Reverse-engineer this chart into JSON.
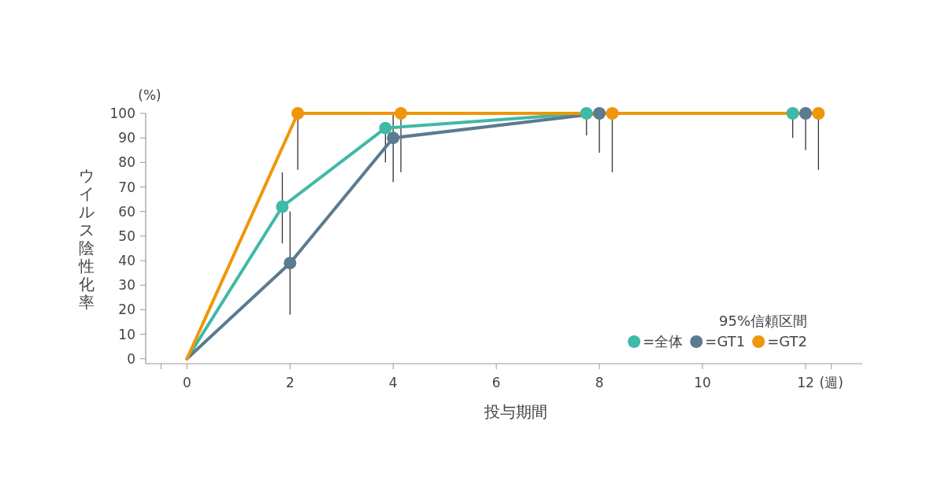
{
  "chart_data": {
    "type": "line",
    "xlabel": "投与期間",
    "ylabel": "ウイルス陰性化率",
    "annotations": [
      "(%)"
    ],
    "legend": "bottom right",
    "legend_title": "95%信頼区間",
    "marker": "circle",
    "xlim": [
      -0.8,
      13.1
    ],
    "xticks": [
      {
        "value": -0.5,
        "label": null
      },
      0,
      2,
      4,
      6,
      8,
      10,
      12,
      {
        "value": 12.5,
        "label": "(週)"
      }
    ],
    "ylim": [
      -2,
      100
    ],
    "yticks": [
      0,
      10,
      20,
      30,
      40,
      50,
      60,
      70,
      80,
      90,
      100
    ],
    "series": [
      {
        "name": "=全体",
        "color": "#40b9a7",
        "x": [
          0,
          1.85,
          3.85,
          7.75,
          11.75
        ],
        "values": [
          0,
          62,
          94,
          100,
          100
        ],
        "errors": [
          null,
          [
            47,
            76
          ],
          [
            80,
            96
          ],
          [
            91,
            100
          ],
          [
            90,
            100
          ]
        ]
      },
      {
        "name": "=GT1",
        "color": "#5b7b8f",
        "x": [
          0,
          2,
          4,
          8,
          12
        ],
        "values": [
          0,
          39,
          90,
          100,
          100
        ],
        "errors": [
          null,
          [
            18,
            60
          ],
          [
            72,
            100
          ],
          [
            84,
            100
          ],
          [
            85,
            100
          ]
        ]
      },
      {
        "name": "=GT2",
        "color": "#f0960a",
        "x": [
          0,
          2.15,
          4.15,
          8.25,
          12.25
        ],
        "values": [
          0,
          100,
          100,
          100,
          100
        ],
        "errors": [
          null,
          [
            77,
            100
          ],
          [
            76,
            100
          ],
          [
            76,
            100
          ],
          [
            77,
            100
          ]
        ]
      }
    ]
  }
}
